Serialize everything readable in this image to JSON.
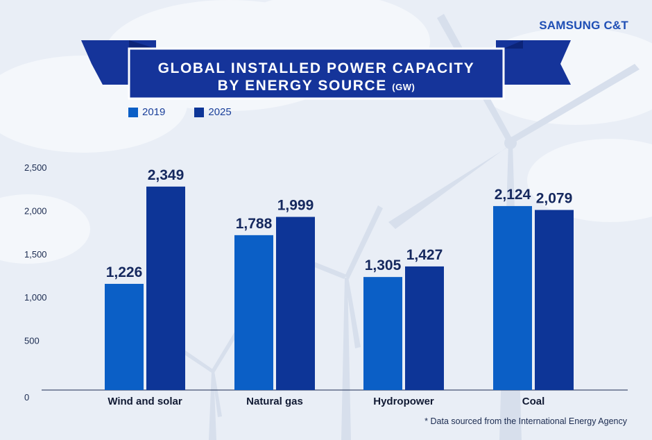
{
  "brand": "SAMSUNG C&T",
  "title": {
    "line1": "GLOBAL INSTALLED POWER CAPACITY",
    "line2": "BY ENERGY SOURCE",
    "unit": "(GW)"
  },
  "colors": {
    "series_2019": "#0b5fc6",
    "series_2025": "#0d3597",
    "banner": "#15349a",
    "banner_dark": "#0c2478",
    "background": "#e9eef6",
    "label": "#15285e",
    "axis": "#1b2b50"
  },
  "chart_data": {
    "type": "bar",
    "title": "GLOBAL INSTALLED POWER CAPACITY BY ENERGY SOURCE (GW)",
    "categories": [
      "Wind and solar",
      "Natural gas",
      "Hydropower",
      "Coal"
    ],
    "series": [
      {
        "name": "2019",
        "values": [
          1226,
          1788,
          1305,
          2124
        ],
        "labels": [
          "1,226",
          "1,788",
          "1,305",
          "2,124"
        ]
      },
      {
        "name": "2025",
        "values": [
          2349,
          1999,
          1427,
          2079
        ],
        "labels": [
          "2,349",
          "1,999",
          "1,427",
          "2,079"
        ]
      }
    ],
    "yticks": [
      0,
      500,
      1000,
      1500,
      2000,
      2500
    ],
    "ytick_labels": [
      "0",
      "500",
      "1,000",
      "1,500",
      "2,000",
      "2,500"
    ],
    "ylim": [
      0,
      2500
    ],
    "legend_position": "top-left",
    "grid": false
  },
  "footnote": "* Data sourced from the International Energy Agency"
}
